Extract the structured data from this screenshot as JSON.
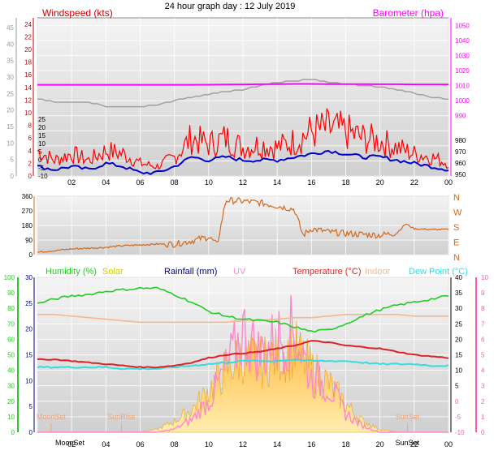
{
  "title": "24 hour graph day : 12 July 2019",
  "colors": {
    "wind_avg": "#0000cc",
    "wind_gust": "#ff0000",
    "barometer": "#ff00ff",
    "barometer_prev": "#a0a0a0",
    "wind_dir": "#d2691e",
    "humidity": "#22cc22",
    "solar": "#ffcc44",
    "solar_axis_label": "#cccc00",
    "rainfall": "#000080",
    "uv": "#ff88cc",
    "temperature": "#dd2222",
    "indoor": "#f4b890",
    "dew_point": "#33dddd",
    "axis_left_green": "#22cc22",
    "axis_right_pink": "#ff55aa",
    "axis_right_red": "#cc0000"
  },
  "chart_data": [
    {
      "type": "line",
      "title": "",
      "legend": [
        "Windspeed (kts)",
        "Barometer (hpa)"
      ],
      "x_ticks": [
        "02",
        "04",
        "06",
        "08",
        "10",
        "12",
        "14",
        "16",
        "18",
        "20",
        "22",
        "00"
      ],
      "y_left_gray": [
        0,
        5,
        10,
        15,
        20,
        25,
        30,
        35,
        40,
        45
      ],
      "y_left_red": [
        0,
        2,
        4,
        6,
        8,
        10,
        12,
        14,
        16,
        18,
        20,
        22,
        24
      ],
      "y_mid_black": [
        -10,
        -5,
        0,
        5,
        10,
        15,
        20,
        25
      ],
      "y_right_magenta": [
        950,
        960,
        970,
        980,
        990,
        1000,
        1010,
        1020,
        1030,
        1040,
        1050
      ],
      "y_right_lower": [
        950,
        960,
        970,
        980
      ],
      "ylim_kts": [
        0,
        25
      ],
      "ylim_hpa": [
        950,
        1055
      ],
      "x_hours": [
        0,
        1,
        2,
        3,
        4,
        5,
        6,
        7,
        8,
        9,
        10,
        11,
        12,
        13,
        14,
        15,
        16,
        17,
        18,
        19,
        20,
        21,
        22,
        23,
        24
      ],
      "series": [
        {
          "name": "Barometer (hpa)",
          "values": [
            1010.5,
            1010.5,
            1010.5,
            1010.5,
            1010.5,
            1010.5,
            1010.5,
            1010.5,
            1010.5,
            1010.5,
            1010.6,
            1010.7,
            1010.8,
            1010.9,
            1011,
            1011.1,
            1011.1,
            1011,
            1011,
            1011,
            1010.9,
            1010.9,
            1010.8,
            1010.8,
            1010.8
          ]
        },
        {
          "values": [
            1001,
            999,
            999,
            999,
            996,
            996,
            996,
            997,
            1000,
            1002,
            1004,
            1006,
            1007,
            1010,
            1012,
            1013,
            1014,
            1012,
            1011,
            1010,
            1009,
            1007,
            1005,
            1002,
            1001
          ]
        },
        {
          "values": [
            4,
            2.5,
            3.5,
            2.5,
            4,
            3.5,
            2,
            1.5,
            3,
            6,
            5,
            6,
            4.5,
            5,
            4.5,
            5.5,
            7,
            7.5,
            7,
            6,
            5.5,
            4.5,
            3.5,
            3,
            2
          ]
        },
        {
          "values": [
            1.5,
            1,
            1.5,
            1,
            2,
            1.5,
            0.5,
            0.5,
            1.5,
            3,
            2.5,
            3,
            2.5,
            2.5,
            2.5,
            3,
            3.5,
            4,
            3.5,
            3,
            3,
            2.5,
            2,
            1.5,
            1
          ]
        }
      ]
    },
    {
      "type": "line",
      "title": "",
      "y_ticks_deg": [
        0,
        90,
        180,
        270,
        360
      ],
      "y_ticks_compass": [
        "N",
        "W",
        "S",
        "E",
        "N"
      ],
      "ylim": [
        0,
        360
      ],
      "x_hours": [
        0,
        1,
        2,
        3,
        4,
        5,
        6,
        7,
        8,
        9,
        10,
        10.5,
        11,
        12,
        13,
        14,
        15,
        15.5,
        16,
        17,
        18,
        19,
        20,
        21,
        21.5,
        22,
        23,
        24
      ],
      "series": [
        {
          "values": [
            15,
            25,
            35,
            40,
            45,
            55,
            60,
            65,
            65,
            85,
            110,
            60,
            335,
            330,
            320,
            300,
            280,
            120,
            160,
            140,
            130,
            125,
            120,
            135,
            190,
            160,
            155,
            155
          ]
        }
      ]
    },
    {
      "type": "area",
      "title": "",
      "legend": [
        "Humidity (%)",
        "Solar",
        "Rainfall (mm)",
        "UV",
        "Temperature (°C)",
        "Indoor",
        "Dew Point (°C)"
      ],
      "x_ticks": [
        "02",
        "04",
        "06",
        "08",
        "10",
        "12",
        "14",
        "16",
        "18",
        "20",
        "22",
        "00"
      ],
      "annotations": [
        "SunRise",
        "MoonSet",
        "MoonRise",
        "SunSet"
      ],
      "y_left_humidity": [
        0,
        10,
        20,
        30,
        40,
        50,
        60,
        70,
        80,
        90,
        100
      ],
      "y_left_rain": [
        0,
        5,
        10,
        15,
        20,
        25,
        30
      ],
      "y_right_temp": [
        -10,
        -5,
        0,
        5,
        10,
        15,
        20,
        25,
        30,
        35,
        40
      ],
      "y_right_uv": [
        0,
        1,
        2,
        3,
        4,
        5,
        6,
        7,
        8,
        9,
        10
      ],
      "x_hours": [
        0,
        1,
        2,
        3,
        4,
        5,
        6,
        7,
        8,
        9,
        10,
        11,
        12,
        13,
        14,
        15,
        16,
        17,
        18,
        19,
        20,
        21,
        22,
        23,
        24
      ],
      "series": [
        {
          "name": "Humidity (%)",
          "values": [
            83,
            86,
            88,
            89,
            91,
            92,
            93,
            93,
            89,
            84,
            78,
            75,
            73,
            72,
            71,
            68,
            65,
            66,
            70,
            75,
            79,
            82,
            84,
            86,
            88
          ]
        },
        {
          "name": "Temperature (°C)",
          "values": [
            13.5,
            13.5,
            13,
            12.5,
            12,
            11.5,
            11,
            11,
            11.5,
            12.5,
            14,
            15,
            15.5,
            16,
            17,
            18,
            19.5,
            19,
            18,
            17.5,
            17,
            16,
            15,
            14.5,
            14
          ]
        },
        {
          "name": "Dew Point (°C)",
          "values": [
            11,
            11,
            11,
            11,
            11,
            10.5,
            10.5,
            10.5,
            11,
            11.5,
            12,
            12.5,
            13,
            13,
            13,
            13.5,
            13,
            13,
            13,
            12.5,
            12,
            12,
            12,
            11.5,
            11.5
          ]
        },
        {
          "name": "Indoor",
          "values": [
            28,
            28,
            27.5,
            27,
            26.5,
            26,
            25.5,
            25.5,
            25.5,
            25.5,
            25.5,
            25.5,
            26,
            26,
            26.5,
            27,
            27,
            27.5,
            28,
            28,
            28,
            28,
            27.5,
            27.5,
            27.5
          ]
        },
        {
          "name": "Solar",
          "values": [
            0,
            0,
            0,
            0,
            0,
            0,
            0,
            0.2,
            0.8,
            1.6,
            3,
            4.5,
            5.5,
            5,
            5.5,
            6,
            4.5,
            3.5,
            2,
            0.8,
            0.2,
            0,
            0,
            0,
            0
          ]
        },
        {
          "name": "UV",
          "values": [
            0,
            0,
            0,
            0,
            0,
            0,
            0,
            0,
            0.2,
            0.8,
            2,
            4,
            6.5,
            5,
            6,
            6.5,
            3.5,
            3,
            1.2,
            0.4,
            0,
            0,
            0,
            0,
            0
          ]
        },
        {
          "name": "Rainfall (mm)",
          "values": [
            0,
            0,
            0,
            0,
            0,
            0,
            0,
            0,
            0,
            0,
            0,
            0,
            0,
            0,
            0,
            0,
            0,
            0,
            0,
            0,
            0,
            0,
            0,
            0,
            0
          ]
        }
      ]
    }
  ]
}
